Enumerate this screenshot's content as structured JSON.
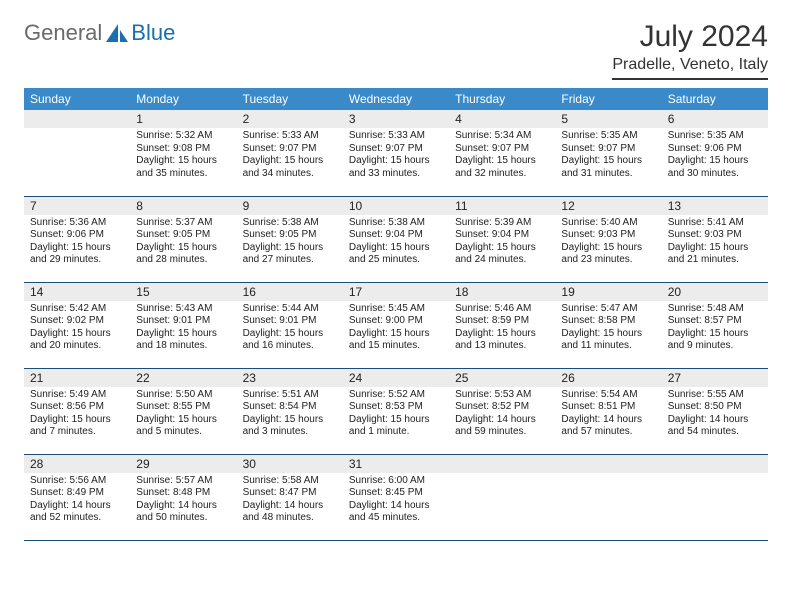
{
  "logo": {
    "text1": "General",
    "text2": "Blue"
  },
  "title": "July 2024",
  "location": "Pradelle, Veneto, Italy",
  "colors": {
    "header_bg": "#3a8ac9",
    "header_fg": "#ffffff",
    "daynum_bg": "#ececec",
    "border": "#1a4d7a",
    "logo_gray": "#6a6a6a",
    "logo_blue": "#1a6fb0"
  },
  "day_labels": [
    "Sunday",
    "Monday",
    "Tuesday",
    "Wednesday",
    "Thursday",
    "Friday",
    "Saturday"
  ],
  "weeks": [
    [
      null,
      {
        "d": "1",
        "sr": "5:32 AM",
        "ss": "9:08 PM",
        "dl": "15 hours and 35 minutes."
      },
      {
        "d": "2",
        "sr": "5:33 AM",
        "ss": "9:07 PM",
        "dl": "15 hours and 34 minutes."
      },
      {
        "d": "3",
        "sr": "5:33 AM",
        "ss": "9:07 PM",
        "dl": "15 hours and 33 minutes."
      },
      {
        "d": "4",
        "sr": "5:34 AM",
        "ss": "9:07 PM",
        "dl": "15 hours and 32 minutes."
      },
      {
        "d": "5",
        "sr": "5:35 AM",
        "ss": "9:07 PM",
        "dl": "15 hours and 31 minutes."
      },
      {
        "d": "6",
        "sr": "5:35 AM",
        "ss": "9:06 PM",
        "dl": "15 hours and 30 minutes."
      }
    ],
    [
      {
        "d": "7",
        "sr": "5:36 AM",
        "ss": "9:06 PM",
        "dl": "15 hours and 29 minutes."
      },
      {
        "d": "8",
        "sr": "5:37 AM",
        "ss": "9:05 PM",
        "dl": "15 hours and 28 minutes."
      },
      {
        "d": "9",
        "sr": "5:38 AM",
        "ss": "9:05 PM",
        "dl": "15 hours and 27 minutes."
      },
      {
        "d": "10",
        "sr": "5:38 AM",
        "ss": "9:04 PM",
        "dl": "15 hours and 25 minutes."
      },
      {
        "d": "11",
        "sr": "5:39 AM",
        "ss": "9:04 PM",
        "dl": "15 hours and 24 minutes."
      },
      {
        "d": "12",
        "sr": "5:40 AM",
        "ss": "9:03 PM",
        "dl": "15 hours and 23 minutes."
      },
      {
        "d": "13",
        "sr": "5:41 AM",
        "ss": "9:03 PM",
        "dl": "15 hours and 21 minutes."
      }
    ],
    [
      {
        "d": "14",
        "sr": "5:42 AM",
        "ss": "9:02 PM",
        "dl": "15 hours and 20 minutes."
      },
      {
        "d": "15",
        "sr": "5:43 AM",
        "ss": "9:01 PM",
        "dl": "15 hours and 18 minutes."
      },
      {
        "d": "16",
        "sr": "5:44 AM",
        "ss": "9:01 PM",
        "dl": "15 hours and 16 minutes."
      },
      {
        "d": "17",
        "sr": "5:45 AM",
        "ss": "9:00 PM",
        "dl": "15 hours and 15 minutes."
      },
      {
        "d": "18",
        "sr": "5:46 AM",
        "ss": "8:59 PM",
        "dl": "15 hours and 13 minutes."
      },
      {
        "d": "19",
        "sr": "5:47 AM",
        "ss": "8:58 PM",
        "dl": "15 hours and 11 minutes."
      },
      {
        "d": "20",
        "sr": "5:48 AM",
        "ss": "8:57 PM",
        "dl": "15 hours and 9 minutes."
      }
    ],
    [
      {
        "d": "21",
        "sr": "5:49 AM",
        "ss": "8:56 PM",
        "dl": "15 hours and 7 minutes."
      },
      {
        "d": "22",
        "sr": "5:50 AM",
        "ss": "8:55 PM",
        "dl": "15 hours and 5 minutes."
      },
      {
        "d": "23",
        "sr": "5:51 AM",
        "ss": "8:54 PM",
        "dl": "15 hours and 3 minutes."
      },
      {
        "d": "24",
        "sr": "5:52 AM",
        "ss": "8:53 PM",
        "dl": "15 hours and 1 minute."
      },
      {
        "d": "25",
        "sr": "5:53 AM",
        "ss": "8:52 PM",
        "dl": "14 hours and 59 minutes."
      },
      {
        "d": "26",
        "sr": "5:54 AM",
        "ss": "8:51 PM",
        "dl": "14 hours and 57 minutes."
      },
      {
        "d": "27",
        "sr": "5:55 AM",
        "ss": "8:50 PM",
        "dl": "14 hours and 54 minutes."
      }
    ],
    [
      {
        "d": "28",
        "sr": "5:56 AM",
        "ss": "8:49 PM",
        "dl": "14 hours and 52 minutes."
      },
      {
        "d": "29",
        "sr": "5:57 AM",
        "ss": "8:48 PM",
        "dl": "14 hours and 50 minutes."
      },
      {
        "d": "30",
        "sr": "5:58 AM",
        "ss": "8:47 PM",
        "dl": "14 hours and 48 minutes."
      },
      {
        "d": "31",
        "sr": "6:00 AM",
        "ss": "8:45 PM",
        "dl": "14 hours and 45 minutes."
      },
      null,
      null,
      null
    ]
  ],
  "labels": {
    "sunrise": "Sunrise:",
    "sunset": "Sunset:",
    "daylight": "Daylight:"
  }
}
